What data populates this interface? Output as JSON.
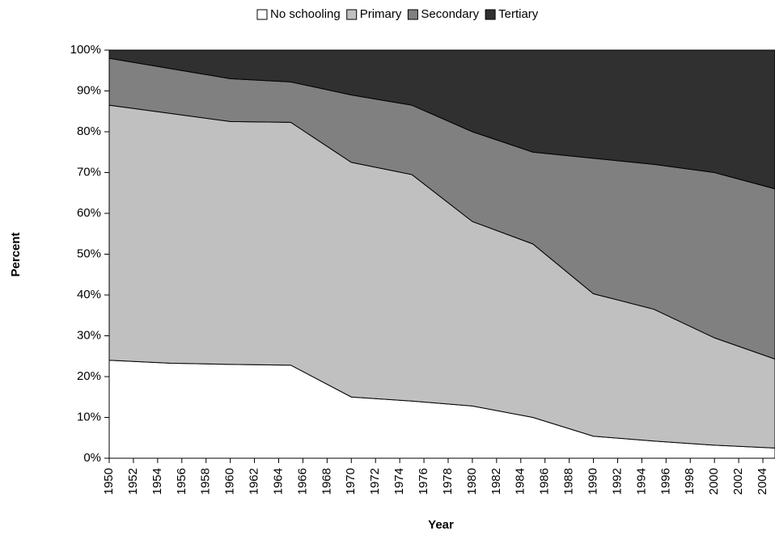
{
  "chart_data": {
    "type": "stacked_area",
    "xlabel": "Year",
    "ylabel": "Percent",
    "x": [
      1950,
      1955,
      1960,
      1965,
      1970,
      1975,
      1980,
      1985,
      1990,
      1995,
      2000,
      2005
    ],
    "series": [
      {
        "name": "No schooling",
        "color": "#ffffff",
        "values": [
          24,
          23.3,
          23,
          22.8,
          15,
          14,
          12.8,
          10,
          5.4,
          4.2,
          3.2,
          2.5
        ]
      },
      {
        "name": "Primary",
        "color": "#c0c0c0",
        "values": [
          62.5,
          61.2,
          59.5,
          59.5,
          57.5,
          55.5,
          45.2,
          42.5,
          34.9,
          32.3,
          26.3,
          21.8
        ]
      },
      {
        "name": "Secondary",
        "color": "#808080",
        "values": [
          11.5,
          11,
          10.5,
          9.9,
          16.5,
          17,
          22,
          22.5,
          33.2,
          35.5,
          40.5,
          41.7
        ]
      },
      {
        "name": "Tertiary",
        "color": "#303030",
        "values": [
          2,
          4.5,
          7,
          7.8,
          11,
          13.5,
          20,
          25,
          26.5,
          28,
          30,
          34
        ]
      }
    ],
    "xlim": [
      1950,
      2005
    ],
    "xticks": [
      1950,
      1952,
      1954,
      1956,
      1958,
      1960,
      1962,
      1964,
      1966,
      1968,
      1970,
      1972,
      1974,
      1976,
      1978,
      1980,
      1982,
      1984,
      1986,
      1988,
      1990,
      1992,
      1994,
      1996,
      1998,
      2000,
      2002,
      2004
    ],
    "ylim": [
      0,
      100
    ],
    "yticks": [
      {
        "value": 0,
        "label": "0%"
      },
      {
        "value": 10,
        "label": "10%"
      },
      {
        "value": 20,
        "label": "20%"
      },
      {
        "value": 30,
        "label": "30%"
      },
      {
        "value": 40,
        "label": "40%"
      },
      {
        "value": 50,
        "label": "50%"
      },
      {
        "value": 60,
        "label": "60%"
      },
      {
        "value": 70,
        "label": "70%"
      },
      {
        "value": 80,
        "label": "80%"
      },
      {
        "value": 90,
        "label": "90%"
      },
      {
        "value": 100,
        "label": "100%"
      }
    ],
    "legend": "top"
  }
}
